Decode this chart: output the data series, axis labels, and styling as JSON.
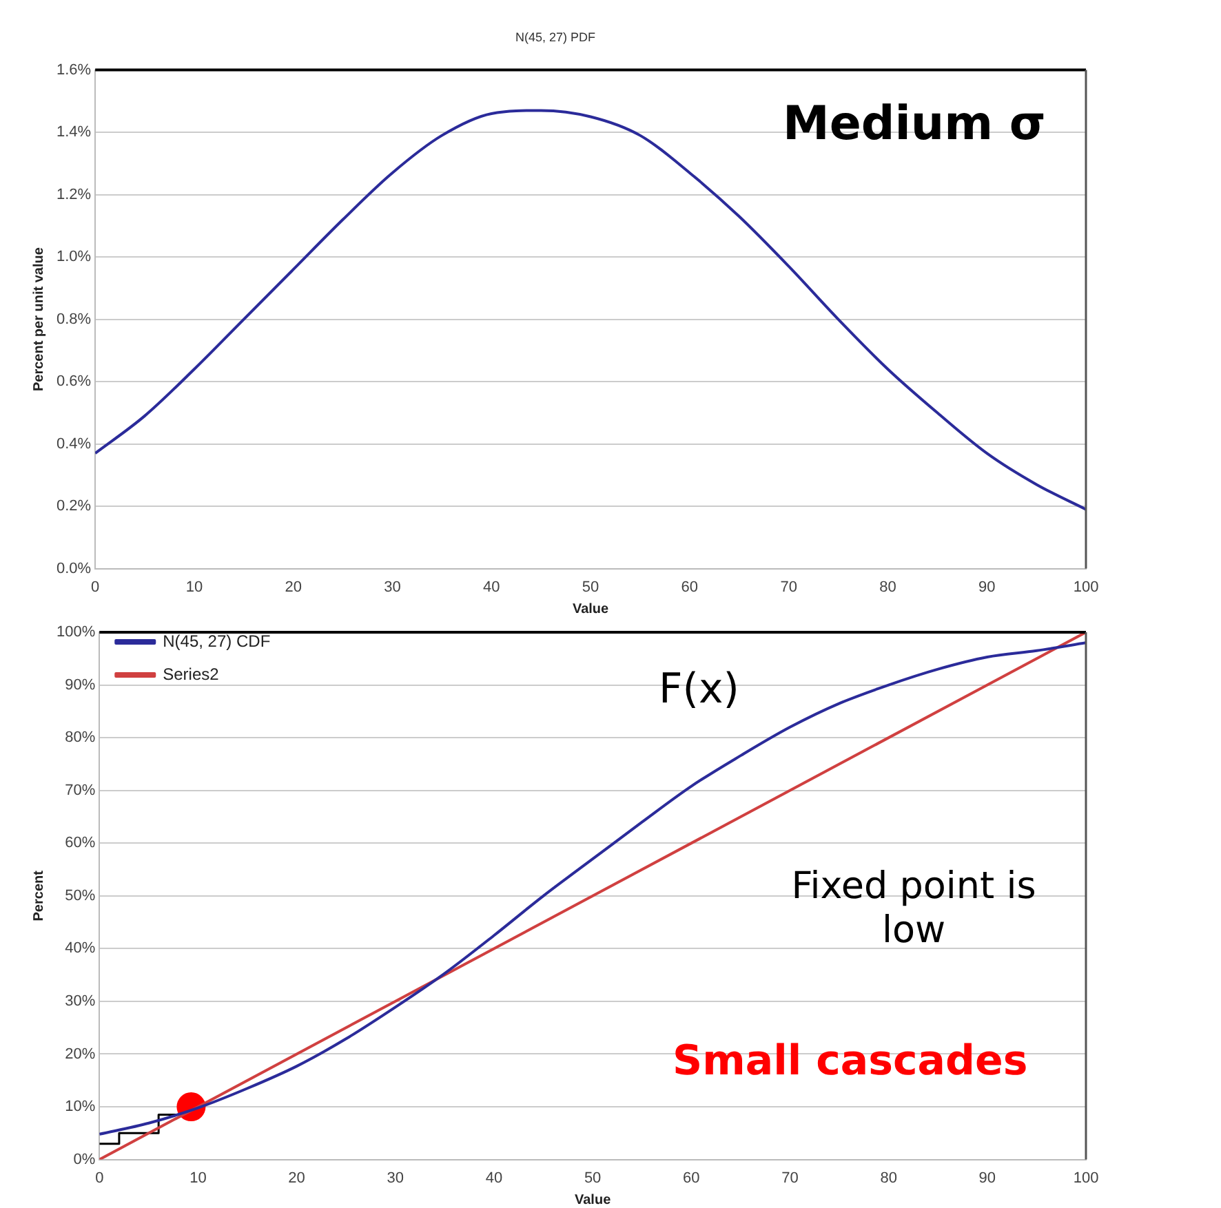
{
  "chart_data": [
    {
      "type": "line",
      "title": "N(45, 27) PDF",
      "xlabel": "Value",
      "ylabel": "Percent per unit value",
      "x": [
        0,
        5,
        10,
        15,
        20,
        25,
        30,
        35,
        40,
        45,
        50,
        55,
        60,
        65,
        70,
        75,
        80,
        85,
        90,
        95,
        100
      ],
      "series": [
        {
          "color": "#2b2b9a",
          "values": [
            0.37,
            0.49,
            0.64,
            0.8,
            0.96,
            1.12,
            1.27,
            1.39,
            1.46,
            1.47,
            1.45,
            1.39,
            1.27,
            1.13,
            0.97,
            0.8,
            0.64,
            0.5,
            0.37,
            0.27,
            0.19
          ]
        }
      ],
      "xlim": [
        0,
        100
      ],
      "xticks": [
        0,
        10,
        20,
        30,
        40,
        50,
        60,
        70,
        80,
        90,
        100
      ],
      "ylim": [
        0,
        1.6
      ],
      "yticks": [
        {
          "value": 0,
          "label": "0.0%"
        },
        {
          "value": 0.2,
          "label": "0.2%"
        },
        {
          "value": 0.4,
          "label": "0.4%"
        },
        {
          "value": 0.6,
          "label": "0.6%"
        },
        {
          "value": 0.8,
          "label": "0.8%"
        },
        {
          "value": 1.0,
          "label": "1.0%"
        },
        {
          "value": 1.2,
          "label": "1.2%"
        },
        {
          "value": 1.4,
          "label": "1.4%"
        },
        {
          "value": 1.6,
          "label": "1.6%"
        }
      ],
      "grid": "y",
      "legend": false,
      "marker": "none",
      "line_style": "solid",
      "annotations": [
        "Medium σ"
      ]
    },
    {
      "type": "line",
      "xlabel": "Value",
      "ylabel": "Percent",
      "x": [
        0,
        5,
        10,
        15,
        20,
        25,
        30,
        35,
        40,
        45,
        50,
        55,
        60,
        65,
        70,
        75,
        80,
        85,
        90,
        95,
        100
      ],
      "series": [
        {
          "name": "N(45, 27) CDF",
          "color": "#2b2b9a",
          "values": [
            4.8,
            6.9,
            9.8,
            13.5,
            17.7,
            22.9,
            28.9,
            35.3,
            42.5,
            50,
            57,
            64,
            70.8,
            76.6,
            82,
            86.5,
            90,
            93,
            95.3,
            96.5,
            98
          ]
        },
        {
          "name": "Series2",
          "color": "#d04040",
          "x": [
            0,
            100
          ],
          "values": [
            0,
            100
          ]
        },
        {
          "type": "step",
          "color": "#000000",
          "x": [
            0,
            2,
            2,
            6,
            6,
            8
          ],
          "values": [
            3,
            3,
            5,
            5,
            8.5,
            8.5
          ]
        },
        {
          "type": "scatter",
          "color": "#ff0000",
          "marker": "circle",
          "x": [
            9.3
          ],
          "values": [
            10
          ]
        }
      ],
      "xlim": [
        0,
        100
      ],
      "xticks": [
        0,
        10,
        20,
        30,
        40,
        50,
        60,
        70,
        80,
        90,
        100
      ],
      "ylim": [
        0,
        100
      ],
      "yticks": [
        {
          "value": 0,
          "label": "0%"
        },
        {
          "value": 10,
          "label": "10%"
        },
        {
          "value": 20,
          "label": "20%"
        },
        {
          "value": 30,
          "label": "30%"
        },
        {
          "value": 40,
          "label": "40%"
        },
        {
          "value": 50,
          "label": "50%"
        },
        {
          "value": 60,
          "label": "60%"
        },
        {
          "value": 70,
          "label": "70%"
        },
        {
          "value": 80,
          "label": "80%"
        },
        {
          "value": 90,
          "label": "90%"
        },
        {
          "value": 100,
          "label": "100%"
        }
      ],
      "grid": "y",
      "legend": "top left",
      "marker": "none",
      "line_style": "solid",
      "annotations": [
        "F(x)",
        "Fixed point is low",
        "Small cascades"
      ]
    }
  ]
}
